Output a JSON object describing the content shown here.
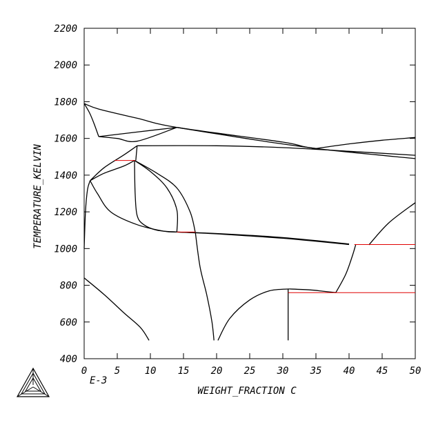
{
  "chart_data": {
    "type": "line",
    "title": "",
    "xlabel": "WEIGHT_FRACTION C",
    "ylabel": "TEMPERATURE_KELVIN",
    "x_scale_label": "E-3",
    "xlim": [
      0,
      50
    ],
    "ylim": [
      400,
      2200
    ],
    "xticks": [
      "0",
      "5",
      "10",
      "15",
      "20",
      "25",
      "30",
      "35",
      "40",
      "45",
      "50"
    ],
    "yticks": [
      "400",
      "600",
      "800",
      "1000",
      "1200",
      "1400",
      "1600",
      "1800",
      "2000",
      "2200"
    ],
    "grid": false,
    "legend": "none",
    "phase_boundaries": [
      {
        "x": [
          0,
          2.2,
          8,
          14,
          30,
          35,
          50
        ],
        "y": [
          1790,
          1760,
          1710,
          1660,
          1580,
          1545,
          1490
        ]
      },
      {
        "x": [
          0,
          0.8,
          1.5,
          2.2
        ],
        "y": [
          1790,
          1740,
          1680,
          1610
        ]
      },
      {
        "x": [
          2.2,
          5,
          8,
          14
        ],
        "y": [
          1610,
          1600,
          1585,
          1660
        ]
      },
      {
        "x": [
          2.2,
          8,
          14
        ],
        "y": [
          1610,
          1635,
          1660
        ]
      },
      {
        "x": [
          14,
          20,
          28,
          35
        ],
        "y": [
          1660,
          1625,
          1580,
          1545
        ]
      },
      {
        "x": [
          35,
          40,
          45,
          50
        ],
        "y": [
          1545,
          1570,
          1590,
          1605
        ]
      },
      {
        "x": [
          8,
          20,
          30,
          40,
          50
        ],
        "y": [
          1560,
          1560,
          1550,
          1530,
          1508
        ]
      },
      {
        "x": [
          0.9,
          3,
          6,
          8
        ],
        "y": [
          1370,
          1440,
          1510,
          1560
        ]
      },
      {
        "x": [
          8,
          7.9,
          7.8
        ],
        "y": [
          1560,
          1520,
          1480
        ]
      },
      {
        "x": [
          0.9,
          3,
          6,
          7.6
        ],
        "y": [
          1370,
          1410,
          1450,
          1480
        ]
      },
      {
        "x": [
          0,
          0.2,
          0.5,
          0.9
        ],
        "y": [
          1000,
          1200,
          1320,
          1370
        ]
      },
      {
        "x": [
          0.9,
          2,
          4,
          8,
          12,
          14
        ],
        "y": [
          1370,
          1300,
          1200,
          1130,
          1095,
          1090
        ]
      },
      {
        "x": [
          7.6,
          7.7,
          8,
          9,
          11,
          14
        ],
        "y": [
          1480,
          1300,
          1180,
          1130,
          1100,
          1090
        ]
      },
      {
        "x": [
          7.6,
          10,
          12.5,
          14,
          14
        ],
        "y": [
          1480,
          1420,
          1330,
          1210,
          1090
        ]
      },
      {
        "x": [
          7.6,
          11,
          14,
          16,
          16.8
        ],
        "y": [
          1480,
          1410,
          1330,
          1200,
          1085
        ]
      },
      {
        "x": [
          14,
          20,
          30,
          40
        ],
        "y": [
          1090,
          1082,
          1060,
          1025
        ]
      },
      {
        "x": [
          14,
          20,
          30,
          40
        ],
        "y": [
          1090,
          1080,
          1056,
          1022
        ]
      },
      {
        "x": [
          16.8,
          17.5,
          18.5,
          19.3,
          19.6
        ],
        "y": [
          1085,
          900,
          750,
          600,
          500
        ]
      },
      {
        "x": [
          20.2,
          22,
          25,
          28,
          31
        ],
        "y": [
          500,
          620,
          720,
          770,
          780
        ]
      },
      {
        "x": [
          31,
          34,
          36,
          38
        ],
        "y": [
          780,
          775,
          768,
          760
        ]
      },
      {
        "x": [
          38,
          39.5,
          40.5,
          41
        ],
        "y": [
          760,
          860,
          960,
          1020
        ]
      },
      {
        "x": [
          43,
          46,
          50
        ],
        "y": [
          1020,
          1140,
          1250
        ]
      },
      {
        "x": [
          30.8,
          30.8
        ],
        "y": [
          780,
          500
        ]
      },
      {
        "x": [
          0,
          3,
          6,
          8.5,
          9.8
        ],
        "y": [
          840,
          750,
          650,
          570,
          500
        ]
      }
    ],
    "tie_lines": [
      {
        "x": [
          4.6,
          7.7
        ],
        "y": [
          1480,
          1480
        ]
      },
      {
        "x": [
          14,
          16.8
        ],
        "y": [
          1090,
          1090
        ]
      },
      {
        "x": [
          40.8,
          50
        ],
        "y": [
          1022,
          1022
        ]
      },
      {
        "x": [
          30.8,
          50
        ],
        "y": [
          760,
          760
        ]
      }
    ],
    "colors": {
      "curve": "#000000",
      "tie_line": "#e00000",
      "frame": "#000000"
    },
    "logo": "thermo-calc-triangle-logo"
  }
}
